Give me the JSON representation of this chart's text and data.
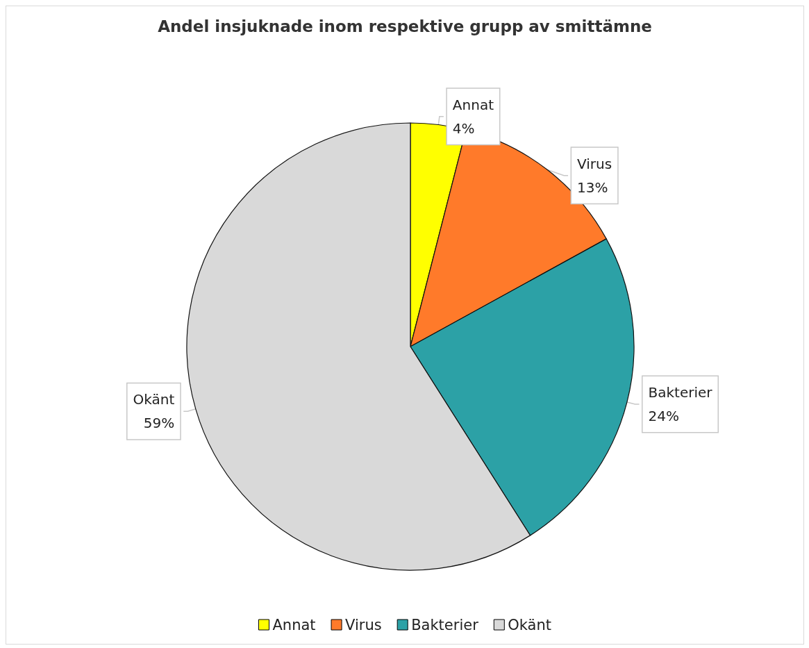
{
  "chart_data": {
    "type": "pie",
    "title": "Andel insjuknade inom respektive grupp av smittämne",
    "categories": [
      "Annat",
      "Virus",
      "Bakterier",
      "Okänt"
    ],
    "values": [
      4,
      13,
      24,
      59
    ],
    "value_labels": [
      "4%",
      "13%",
      "24%",
      "59%"
    ],
    "colors": [
      "#ffff00",
      "#ff7a2a",
      "#2ca1a6",
      "#d9d9d9"
    ],
    "legend": "bottom"
  }
}
